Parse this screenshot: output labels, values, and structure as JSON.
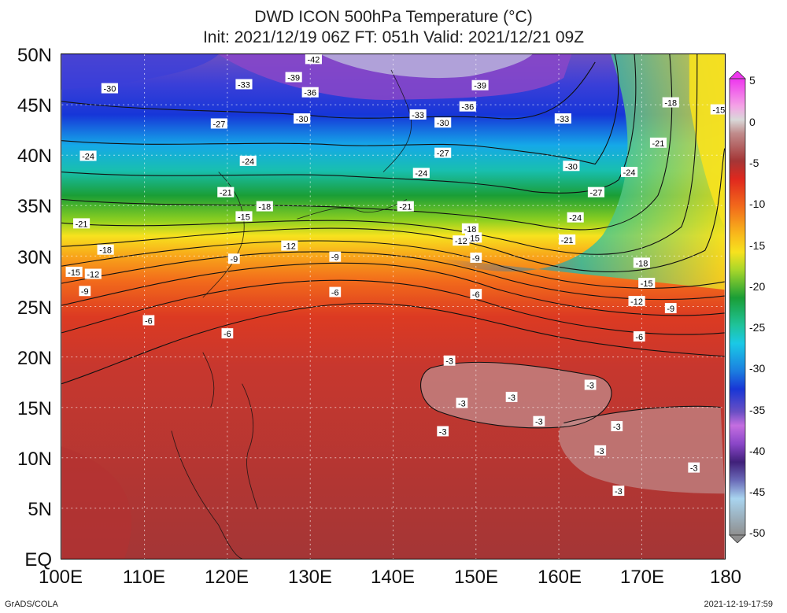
{
  "title_line1": "DWD ICON 500hPa Temperature (°C)",
  "title_line2": "Init: 2021/12/19 06Z  FT: 051h  Valid: 2021/12/21 09Z",
  "lat_labels": [
    "50N",
    "45N",
    "40N",
    "35N",
    "30N",
    "25N",
    "20N",
    "15N",
    "10N",
    "5N",
    "EQ"
  ],
  "lon_labels": [
    "100E",
    "110E",
    "120E",
    "130E",
    "140E",
    "150E",
    "160E",
    "170E",
    "180"
  ],
  "colorbar_labels": [
    "5",
    "0",
    "-5",
    "-10",
    "-15",
    "-20",
    "-25",
    "-30",
    "-35",
    "-40",
    "-45",
    "-50"
  ],
  "footer_left": "GrADS/COLA",
  "footer_right": "2021-12-19-17:59",
  "contour_labels": [
    {
      "t": "-42",
      "lon": 130.4,
      "lat": 49.5
    },
    {
      "t": "-39",
      "lon": 128.0,
      "lat": 47.7
    },
    {
      "t": "-39",
      "lon": 150.5,
      "lat": 46.9
    },
    {
      "t": "-36",
      "lon": 130.0,
      "lat": 46.2
    },
    {
      "t": "-36",
      "lon": 149.0,
      "lat": 44.8
    },
    {
      "t": "-33",
      "lon": 122.0,
      "lat": 47.0
    },
    {
      "t": "-33",
      "lon": 143.0,
      "lat": 44.0
    },
    {
      "t": "-33",
      "lon": 160.5,
      "lat": 43.6
    },
    {
      "t": "-30",
      "lon": 105.8,
      "lat": 46.6
    },
    {
      "t": "-30",
      "lon": 129.0,
      "lat": 43.6
    },
    {
      "t": "-30",
      "lon": 146.0,
      "lat": 43.2
    },
    {
      "t": "-30",
      "lon": 161.5,
      "lat": 38.9
    },
    {
      "t": "-27",
      "lon": 119.0,
      "lat": 43.1
    },
    {
      "t": "-27",
      "lon": 146.0,
      "lat": 40.2
    },
    {
      "t": "-27",
      "lon": 164.5,
      "lat": 36.3
    },
    {
      "t": "-24",
      "lon": 103.2,
      "lat": 39.9
    },
    {
      "t": "-24",
      "lon": 122.5,
      "lat": 39.4
    },
    {
      "t": "-24",
      "lon": 143.4,
      "lat": 38.2
    },
    {
      "t": "-24",
      "lon": 168.5,
      "lat": 38.3
    },
    {
      "t": "-24",
      "lon": 162.0,
      "lat": 33.8
    },
    {
      "t": "-21",
      "lon": 102.4,
      "lat": 33.2
    },
    {
      "t": "-21",
      "lon": 119.8,
      "lat": 36.3
    },
    {
      "t": "-21",
      "lon": 141.5,
      "lat": 34.9
    },
    {
      "t": "-21",
      "lon": 161.0,
      "lat": 31.6
    },
    {
      "t": "-21",
      "lon": 172.0,
      "lat": 41.2
    },
    {
      "t": "-18",
      "lon": 124.5,
      "lat": 34.9
    },
    {
      "t": "-18",
      "lon": 105.3,
      "lat": 30.6
    },
    {
      "t": "-18",
      "lon": 149.3,
      "lat": 32.7
    },
    {
      "t": "-18",
      "lon": 170.0,
      "lat": 29.3
    },
    {
      "t": "-18",
      "lon": 173.5,
      "lat": 45.2
    },
    {
      "t": "-15",
      "lon": 122.0,
      "lat": 33.9
    },
    {
      "t": "-15",
      "lon": 101.5,
      "lat": 28.4
    },
    {
      "t": "-15",
      "lon": 149.7,
      "lat": 31.8
    },
    {
      "t": "-15",
      "lon": 170.6,
      "lat": 27.3
    },
    {
      "t": "-15",
      "lon": 179.3,
      "lat": 44.5
    },
    {
      "t": "-12",
      "lon": 127.5,
      "lat": 31.0
    },
    {
      "t": "-12",
      "lon": 103.8,
      "lat": 28.2
    },
    {
      "t": "-12",
      "lon": 148.2,
      "lat": 31.5
    },
    {
      "t": "-12",
      "lon": 169.4,
      "lat": 25.5
    },
    {
      "t": "-9",
      "lon": 120.8,
      "lat": 29.7
    },
    {
      "t": "-9",
      "lon": 133.0,
      "lat": 29.9
    },
    {
      "t": "-9",
      "lon": 102.8,
      "lat": 26.5
    },
    {
      "t": "-9",
      "lon": 150.0,
      "lat": 29.8
    },
    {
      "t": "-9",
      "lon": 173.5,
      "lat": 24.8
    },
    {
      "t": "-6",
      "lon": 110.5,
      "lat": 23.6
    },
    {
      "t": "-6",
      "lon": 120.0,
      "lat": 22.3
    },
    {
      "t": "-6",
      "lon": 133.0,
      "lat": 26.4
    },
    {
      "t": "-6",
      "lon": 150.0,
      "lat": 26.2
    },
    {
      "t": "-6",
      "lon": 169.7,
      "lat": 22.0
    },
    {
      "t": "-3",
      "lon": 146.8,
      "lat": 19.6
    },
    {
      "t": "-3",
      "lon": 154.3,
      "lat": 16.0
    },
    {
      "t": "-3",
      "lon": 163.8,
      "lat": 17.2
    },
    {
      "t": "-3",
      "lon": 148.3,
      "lat": 15.4
    },
    {
      "t": "-3",
      "lon": 157.6,
      "lat": 13.6
    },
    {
      "t": "-3",
      "lon": 146.0,
      "lat": 12.6
    },
    {
      "t": "-3",
      "lon": 167.0,
      "lat": 13.1
    },
    {
      "t": "-3",
      "lon": 165.0,
      "lat": 10.7
    },
    {
      "t": "-3",
      "lon": 176.3,
      "lat": 9.0
    },
    {
      "t": "-3",
      "lon": 167.2,
      "lat": 6.7
    }
  ],
  "colors": {
    "warm_red": "#d23a2a",
    "dark_red": "#9c3434",
    "pink_gray": "#c08b8b",
    "orange": "#f26a1b",
    "yellow": "#f7e21e",
    "green": "#1a9e36",
    "cyan": "#1ac9e6",
    "blue": "#1836d6",
    "purple": "#8a46c8",
    "lavender": "#b9b1dc"
  }
}
